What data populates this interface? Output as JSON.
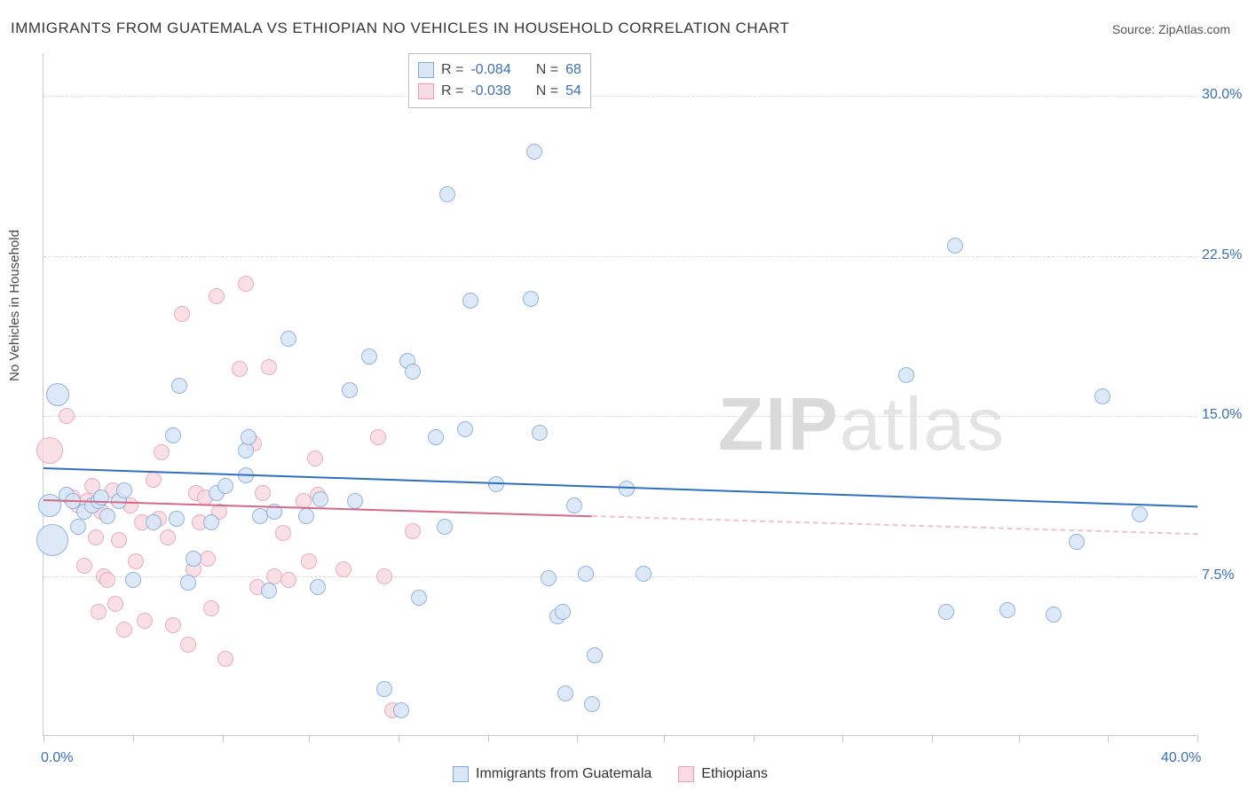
{
  "title": "IMMIGRANTS FROM GUATEMALA VS ETHIOPIAN NO VEHICLES IN HOUSEHOLD CORRELATION CHART",
  "source": "Source: ZipAtlas.com",
  "watermark_a": "ZIP",
  "watermark_b": "atlas",
  "ylabel": "No Vehicles in Household",
  "chart": {
    "type": "scatter",
    "background_color": "#ffffff",
    "grid_color": "#dcdcdc",
    "axis_color": "#c9c9c9",
    "label_color": "#3b6fb6",
    "text_color": "#4a4a4a",
    "title_fontsize": 17,
    "label_fontsize": 15,
    "tick_fontsize": 16,
    "xlim": [
      0,
      40
    ],
    "ylim": [
      0,
      32
    ],
    "x_tick_positions": [
      0,
      3.1,
      6.2,
      9.2,
      12.3,
      15.4,
      18.5,
      21.5,
      24.6,
      27.7,
      30.8,
      33.8,
      36.9,
      40
    ],
    "x_tick_labels": {
      "first": "0.0%",
      "last": "40.0%"
    },
    "y_grid": [
      7.5,
      15.0,
      22.5,
      30.0
    ],
    "y_tick_labels": [
      "7.5%",
      "15.0%",
      "22.5%",
      "30.0%"
    ],
    "series": [
      {
        "name": "Immigrants from Guatemala",
        "color_fill": "#d9e6f7",
        "color_stroke": "#7fa8d9",
        "trend_color": "#2f6fc1",
        "trend_dash_color": "#a9c4e6",
        "trend": {
          "y_at_x0": 12.6,
          "y_at_xmax": 10.8,
          "solid_until_x": 40
        },
        "correlation": "-0.084",
        "n": "68",
        "marker_radius": 9,
        "points": [
          {
            "x": 0.3,
            "y": 9.2,
            "r": 18
          },
          {
            "x": 0.5,
            "y": 16.0,
            "r": 13
          },
          {
            "x": 0.2,
            "y": 10.8,
            "r": 13
          },
          {
            "x": 0.8,
            "y": 11.3
          },
          {
            "x": 1.0,
            "y": 11.0
          },
          {
            "x": 1.2,
            "y": 9.8
          },
          {
            "x": 1.4,
            "y": 10.5
          },
          {
            "x": 1.7,
            "y": 10.8
          },
          {
            "x": 1.9,
            "y": 11.0
          },
          {
            "x": 2.0,
            "y": 11.2
          },
          {
            "x": 2.2,
            "y": 10.3
          },
          {
            "x": 2.6,
            "y": 11.0
          },
          {
            "x": 2.8,
            "y": 11.5
          },
          {
            "x": 3.1,
            "y": 7.3
          },
          {
            "x": 3.8,
            "y": 10.0
          },
          {
            "x": 4.5,
            "y": 14.1
          },
          {
            "x": 4.6,
            "y": 10.2
          },
          {
            "x": 4.7,
            "y": 16.4
          },
          {
            "x": 5.0,
            "y": 7.2
          },
          {
            "x": 5.2,
            "y": 8.3
          },
          {
            "x": 5.8,
            "y": 10.0
          },
          {
            "x": 6.0,
            "y": 11.4
          },
          {
            "x": 6.3,
            "y": 11.7
          },
          {
            "x": 7.0,
            "y": 12.2
          },
          {
            "x": 7.0,
            "y": 13.4
          },
          {
            "x": 7.1,
            "y": 14.0
          },
          {
            "x": 7.5,
            "y": 10.3
          },
          {
            "x": 7.8,
            "y": 6.8
          },
          {
            "x": 8.0,
            "y": 10.5
          },
          {
            "x": 8.5,
            "y": 18.6
          },
          {
            "x": 9.1,
            "y": 10.3
          },
          {
            "x": 9.6,
            "y": 11.1
          },
          {
            "x": 9.5,
            "y": 7.0
          },
          {
            "x": 10.6,
            "y": 16.2
          },
          {
            "x": 10.8,
            "y": 11.0
          },
          {
            "x": 11.3,
            "y": 17.8
          },
          {
            "x": 11.8,
            "y": 2.2
          },
          {
            "x": 12.4,
            "y": 1.2
          },
          {
            "x": 12.6,
            "y": 17.6
          },
          {
            "x": 12.8,
            "y": 17.1
          },
          {
            "x": 13.0,
            "y": 6.5
          },
          {
            "x": 13.6,
            "y": 14.0
          },
          {
            "x": 13.9,
            "y": 9.8
          },
          {
            "x": 14.0,
            "y": 25.4
          },
          {
            "x": 14.6,
            "y": 14.4
          },
          {
            "x": 14.8,
            "y": 20.4
          },
          {
            "x": 15.7,
            "y": 11.8
          },
          {
            "x": 16.9,
            "y": 20.5
          },
          {
            "x": 17.0,
            "y": 27.4
          },
          {
            "x": 17.2,
            "y": 14.2
          },
          {
            "x": 17.5,
            "y": 7.4
          },
          {
            "x": 17.8,
            "y": 5.6
          },
          {
            "x": 18.0,
            "y": 5.8
          },
          {
            "x": 18.1,
            "y": 2.0
          },
          {
            "x": 18.4,
            "y": 10.8
          },
          {
            "x": 18.8,
            "y": 7.6
          },
          {
            "x": 19.0,
            "y": 1.5
          },
          {
            "x": 19.1,
            "y": 3.8
          },
          {
            "x": 20.2,
            "y": 11.6
          },
          {
            "x": 20.8,
            "y": 7.6
          },
          {
            "x": 29.9,
            "y": 16.9
          },
          {
            "x": 31.3,
            "y": 5.8
          },
          {
            "x": 31.6,
            "y": 23.0
          },
          {
            "x": 33.4,
            "y": 5.9
          },
          {
            "x": 35.0,
            "y": 5.7
          },
          {
            "x": 35.8,
            "y": 9.1
          },
          {
            "x": 36.7,
            "y": 15.9
          },
          {
            "x": 38.0,
            "y": 10.4
          }
        ]
      },
      {
        "name": "Ethiopians",
        "color_fill": "#f8dbe2",
        "color_stroke": "#e8a0b2",
        "trend_color": "#d56a86",
        "trend_dash_color": "#f1c2ce",
        "trend": {
          "y_at_x0": 11.1,
          "y_at_xmax": 9.5,
          "solid_until_x": 19
        },
        "correlation": "-0.038",
        "n": "54",
        "marker_radius": 9,
        "points": [
          {
            "x": 0.2,
            "y": 13.4,
            "r": 15
          },
          {
            "x": 0.8,
            "y": 15.0
          },
          {
            "x": 1.0,
            "y": 11.2
          },
          {
            "x": 1.2,
            "y": 10.8
          },
          {
            "x": 1.4,
            "y": 8.0
          },
          {
            "x": 1.5,
            "y": 11.0
          },
          {
            "x": 1.7,
            "y": 11.7
          },
          {
            "x": 1.8,
            "y": 9.3
          },
          {
            "x": 1.9,
            "y": 5.8
          },
          {
            "x": 2.0,
            "y": 10.5
          },
          {
            "x": 2.1,
            "y": 7.5
          },
          {
            "x": 2.2,
            "y": 7.3
          },
          {
            "x": 2.4,
            "y": 11.5
          },
          {
            "x": 2.5,
            "y": 6.2
          },
          {
            "x": 2.6,
            "y": 9.2
          },
          {
            "x": 2.8,
            "y": 5.0
          },
          {
            "x": 3.0,
            "y": 10.8
          },
          {
            "x": 3.2,
            "y": 8.2
          },
          {
            "x": 3.4,
            "y": 10.0
          },
          {
            "x": 3.5,
            "y": 5.4
          },
          {
            "x": 3.8,
            "y": 12.0
          },
          {
            "x": 4.0,
            "y": 10.2
          },
          {
            "x": 4.1,
            "y": 13.3
          },
          {
            "x": 4.3,
            "y": 9.3
          },
          {
            "x": 4.5,
            "y": 5.2
          },
          {
            "x": 4.8,
            "y": 19.8
          },
          {
            "x": 5.0,
            "y": 4.3
          },
          {
            "x": 5.2,
            "y": 7.8
          },
          {
            "x": 5.3,
            "y": 11.4
          },
          {
            "x": 5.4,
            "y": 10.0
          },
          {
            "x": 5.6,
            "y": 11.2
          },
          {
            "x": 5.7,
            "y": 8.3
          },
          {
            "x": 5.8,
            "y": 6.0
          },
          {
            "x": 6.0,
            "y": 20.6
          },
          {
            "x": 6.1,
            "y": 10.5
          },
          {
            "x": 6.3,
            "y": 3.6
          },
          {
            "x": 6.8,
            "y": 17.2
          },
          {
            "x": 7.0,
            "y": 21.2
          },
          {
            "x": 7.3,
            "y": 13.7
          },
          {
            "x": 7.4,
            "y": 7.0
          },
          {
            "x": 7.6,
            "y": 11.4
          },
          {
            "x": 7.8,
            "y": 17.3
          },
          {
            "x": 8.0,
            "y": 7.5
          },
          {
            "x": 8.3,
            "y": 9.5
          },
          {
            "x": 8.5,
            "y": 7.3
          },
          {
            "x": 9.0,
            "y": 11.0
          },
          {
            "x": 9.2,
            "y": 8.2
          },
          {
            "x": 9.4,
            "y": 13.0
          },
          {
            "x": 9.5,
            "y": 11.3
          },
          {
            "x": 10.4,
            "y": 7.8
          },
          {
            "x": 11.6,
            "y": 14.0
          },
          {
            "x": 11.8,
            "y": 7.5
          },
          {
            "x": 12.1,
            "y": 1.2
          },
          {
            "x": 12.8,
            "y": 9.6
          }
        ]
      }
    ]
  },
  "legend_top": {
    "r_label": "R =",
    "n_label": "N ="
  },
  "legend_bottom": {
    "items": [
      "Immigrants from Guatemala",
      "Ethiopians"
    ]
  }
}
